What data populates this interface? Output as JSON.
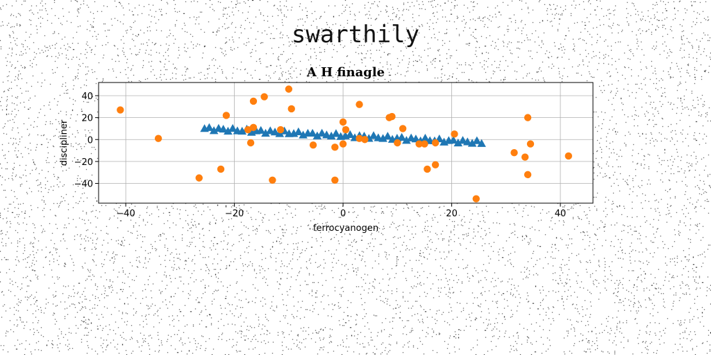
{
  "figure": {
    "suptitle": "swarthily"
  },
  "chart_data": {
    "type": "scatter",
    "title": "A H finagle",
    "xlabel": "ferrocyanogen",
    "ylabel": "discipliner",
    "xlim": [
      -45,
      46
    ],
    "ylim": [
      -58,
      52
    ],
    "xticks": [
      -40,
      -20,
      0,
      20,
      40
    ],
    "yticks": [
      -40,
      -20,
      0,
      20,
      40
    ],
    "xtick_labels": [
      "−40",
      "−20",
      "0",
      "20",
      "40"
    ],
    "ytick_labels": [
      "−40",
      "−20",
      "0",
      "20",
      "40"
    ],
    "grid": true,
    "legend": "none",
    "colors": {
      "series_line": "#1f77b4",
      "series_points": "#ff7f0e",
      "grid": "#b0b0b0"
    },
    "series": [
      {
        "marker": "triangle",
        "x_range": [
          -25.5,
          25.5
        ],
        "count": 60,
        "fit": {
          "slope": -0.25,
          "intercept": 3.2
        },
        "jitter": 1.5
      },
      {
        "marker": "circle",
        "points": [
          [
            -41,
            27
          ],
          [
            -34,
            1
          ],
          [
            -26.5,
            -35
          ],
          [
            -22.5,
            -27
          ],
          [
            -21.5,
            22
          ],
          [
            -17.5,
            9
          ],
          [
            -17,
            -3
          ],
          [
            -16.5,
            35
          ],
          [
            -16.5,
            11
          ],
          [
            -14.5,
            39
          ],
          [
            -13,
            -37
          ],
          [
            -11.5,
            9
          ],
          [
            -10,
            46
          ],
          [
            -9.5,
            28
          ],
          [
            -5.5,
            -5
          ],
          [
            -1.5,
            -7
          ],
          [
            -1.5,
            -37
          ],
          [
            0,
            16
          ],
          [
            0,
            -4
          ],
          [
            0.5,
            9
          ],
          [
            3,
            32
          ],
          [
            3,
            1
          ],
          [
            4,
            0
          ],
          [
            8.5,
            20
          ],
          [
            9,
            21
          ],
          [
            10,
            -3
          ],
          [
            11,
            10
          ],
          [
            14,
            -4
          ],
          [
            15,
            -4
          ],
          [
            15.5,
            -27
          ],
          [
            17,
            -23
          ],
          [
            17,
            -3
          ],
          [
            20.5,
            5
          ],
          [
            24.5,
            -54
          ],
          [
            31.5,
            -12
          ],
          [
            33.5,
            -16
          ],
          [
            34,
            -32
          ],
          [
            34,
            20
          ],
          [
            34.5,
            -4
          ],
          [
            41.5,
            -15
          ]
        ]
      }
    ]
  }
}
